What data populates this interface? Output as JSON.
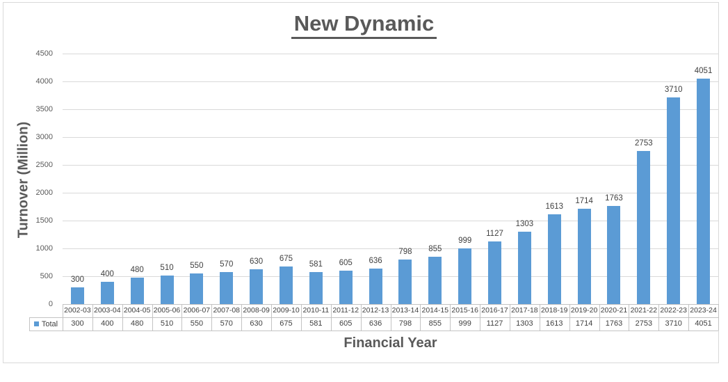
{
  "chart_data": {
    "type": "bar",
    "title": "New Dynamic",
    "xlabel": "Financial Year",
    "ylabel": "Turnover (Million)",
    "categories": [
      "2002-03",
      "2003-04",
      "2004-05",
      "2005-06",
      "2006-07",
      "2007-08",
      "2008-09",
      "2009-10",
      "2010-11",
      "2011-12",
      "2012-13",
      "2013-14",
      "2014-15",
      "2015-16",
      "2016-17",
      "2017-18",
      "2018-19",
      "2019-20",
      "2020-21",
      "2021-22",
      "2022-23",
      "2023-24"
    ],
    "series": [
      {
        "name": "Total",
        "values": [
          300,
          400,
          480,
          510,
          550,
          570,
          630,
          675,
          581,
          605,
          636,
          798,
          855,
          999,
          1127,
          1303,
          1613,
          1714,
          1763,
          2753,
          3710,
          4051
        ]
      }
    ],
    "data_labels": [
      300,
      400,
      480,
      510,
      550,
      570,
      630,
      675,
      581,
      605,
      636,
      798,
      855,
      999,
      1127,
      1303,
      1613,
      1714,
      1763,
      2753,
      3710,
      4051
    ],
    "ylim": [
      0,
      4500
    ],
    "yticks": [
      0,
      500,
      1000,
      1500,
      2000,
      2500,
      3000,
      3500,
      4000,
      4500
    ],
    "grid": "horizontal",
    "legend_position": "data-table-left",
    "bar_color": "#5b9bd5",
    "gridline_color": "#d9d9d9",
    "table_border_color": "#c3c3c3",
    "title_color": "#595959",
    "label_color": "#404040"
  }
}
